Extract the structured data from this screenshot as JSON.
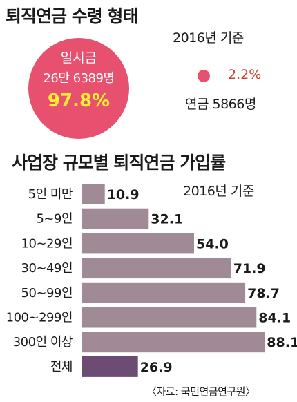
{
  "top": {
    "title": "퇴직연금 수령 형태",
    "basis": "2016년 기준",
    "lump_sum": {
      "label": "일시금",
      "count": "26만 6389명",
      "percent": "97.8%",
      "color": "#e8506f",
      "percent_color": "#ffee33"
    },
    "annuity": {
      "label": "연금 5866명",
      "percent": "2.2%",
      "color": "#e8506f",
      "percent_color": "#c8432c"
    }
  },
  "bottom": {
    "title": "사업장 규모별 퇴직연금 가입률",
    "basis": "2016년 기준",
    "source": "〈자료: 국민연금연구원〉"
  },
  "chart_data": [
    {
      "type": "pie",
      "title": "퇴직연금 수령 형태",
      "subtitle": "2016년 기준",
      "slices": [
        {
          "name": "일시금",
          "count_label": "26만 6389명",
          "value": 97.8
        },
        {
          "name": "연금",
          "count_label": "5866명",
          "value": 2.2
        }
      ]
    },
    {
      "type": "bar",
      "orientation": "horizontal",
      "title": "사업장 규모별 퇴직연금 가입률",
      "subtitle": "2016년 기준",
      "categories": [
        "5인 미만",
        "5~9인",
        "10~29인",
        "30~49인",
        "50~99인",
        "100~299인",
        "300인 이상",
        "전체"
      ],
      "values": [
        10.9,
        32.1,
        54.0,
        71.9,
        78.7,
        84.1,
        88.1,
        26.9
      ],
      "value_labels": [
        "10.9",
        "32.1",
        "54.0",
        "71.9",
        "78.7",
        "84.1",
        "88.1",
        "26.9"
      ],
      "bar_colors": [
        "#a08a95",
        "#a08a95",
        "#a08a95",
        "#a08a95",
        "#a08a95",
        "#a08a95",
        "#a08a95",
        "#6d4c73"
      ],
      "xlim": [
        0,
        100
      ],
      "grid": false,
      "source": "〈자료: 국민연금연구원〉"
    }
  ]
}
